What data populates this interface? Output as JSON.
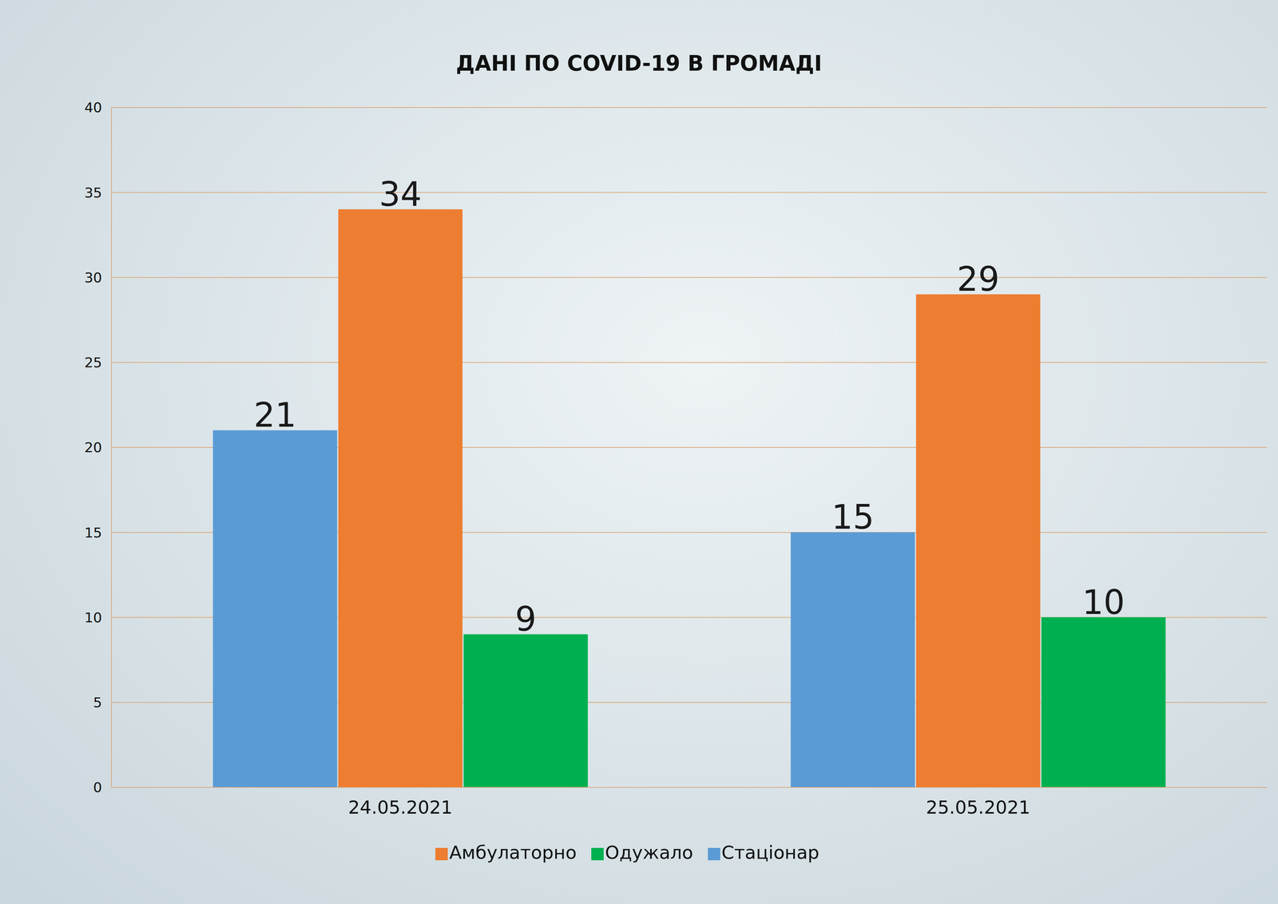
{
  "chart_data": {
    "type": "bar",
    "title": "ДАНІ ПО COVID-19 В ГРОМАДІ",
    "categories": [
      "24.05.2021",
      "25.05.2021"
    ],
    "series": [
      {
        "name": "Стаціонар",
        "color": "#5b9bd5",
        "values": [
          21,
          15
        ]
      },
      {
        "name": "Амбулаторно",
        "color": "#ed7d31",
        "values": [
          34,
          29
        ]
      },
      {
        "name": "Одужало",
        "color": "#00b050",
        "values": [
          9,
          10
        ]
      }
    ],
    "ylim": [
      0,
      40
    ],
    "yticks": [
      0,
      5,
      10,
      15,
      20,
      25,
      30,
      35,
      40
    ],
    "grid": true,
    "legend": "bottom",
    "data_labels": true
  }
}
